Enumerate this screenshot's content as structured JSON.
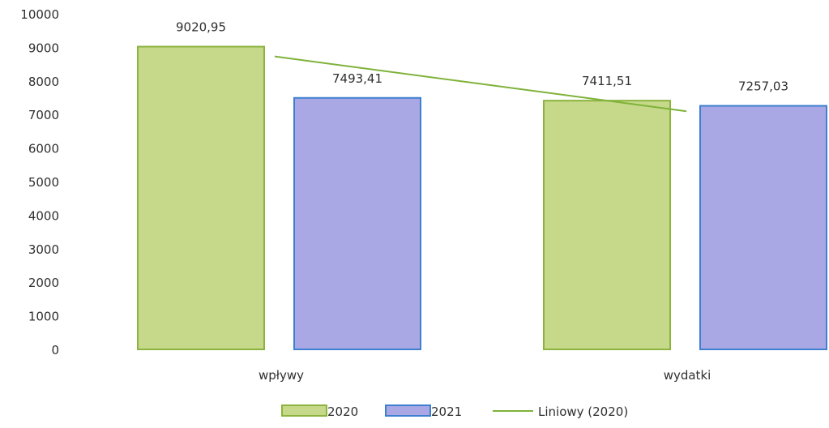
{
  "chart_data": {
    "type": "bar",
    "categories": [
      "wpływy",
      "wydatki"
    ],
    "series": [
      {
        "name": "2020",
        "values": [
          9020.95,
          7411.51
        ],
        "labels": [
          "9020,95",
          "7411,51"
        ],
        "fill": "#c6d98a",
        "stroke": "#8cb33e"
      },
      {
        "name": "2021",
        "values": [
          7493.41,
          7257.03
        ],
        "labels": [
          "7493,41",
          "7257,03"
        ],
        "fill": "#a9a8e4",
        "stroke": "#3d7fd0"
      }
    ],
    "trendline": {
      "name": "Liniowy (2020)",
      "of_series": "2020",
      "color": "#7fb23a"
    },
    "ylim": [
      0,
      10000
    ],
    "yticks": [
      0,
      1000,
      2000,
      3000,
      4000,
      5000,
      6000,
      7000,
      8000,
      9000,
      10000
    ],
    "grid": false,
    "legend_position": "bottom"
  }
}
